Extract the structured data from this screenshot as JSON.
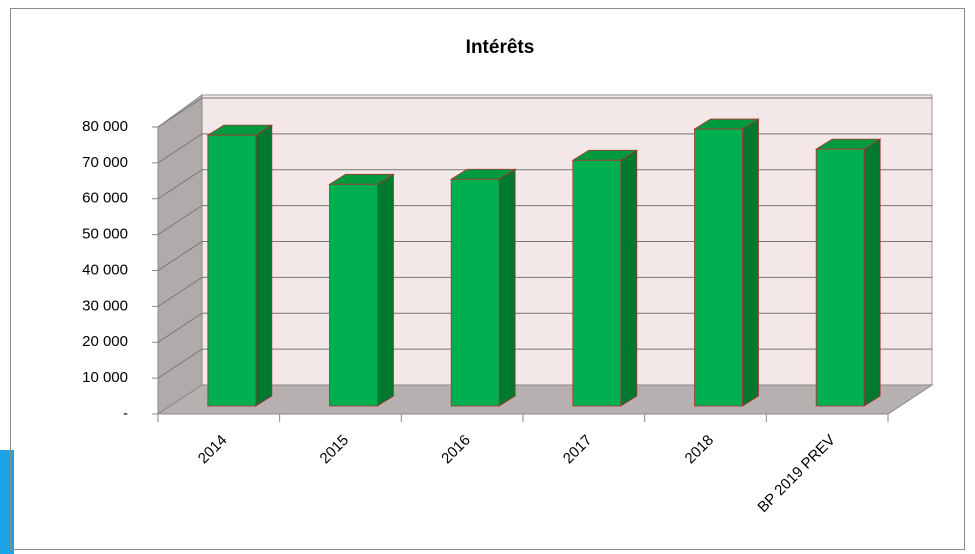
{
  "chart_data": {
    "type": "bar3d",
    "title": "Intérêts",
    "categories": [
      "2014",
      "2015",
      "2016",
      "2017",
      "2018",
      "BP 2019 PREV"
    ],
    "values": [
      75500,
      61800,
      63200,
      68500,
      77200,
      71600
    ],
    "color": "#00b050",
    "ylim": [
      0,
      80000
    ],
    "yticks": [
      {
        "value": 0,
        "label": "-"
      },
      {
        "value": 10000,
        "label": "10 000"
      },
      {
        "value": 20000,
        "label": "20 000"
      },
      {
        "value": 30000,
        "label": "30 000"
      },
      {
        "value": 40000,
        "label": "40 000"
      },
      {
        "value": 50000,
        "label": "50 000"
      },
      {
        "value": 60000,
        "label": "60 000"
      },
      {
        "value": 70000,
        "label": "70 000"
      },
      {
        "value": 80000,
        "label": "80 000"
      }
    ],
    "grid": true
  }
}
